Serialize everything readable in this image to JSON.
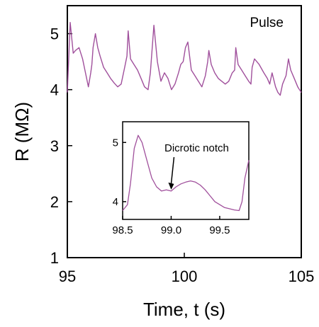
{
  "chart_data": [
    {
      "type": "line",
      "xlabel": "Time, t (s)",
      "ylabel": "R (MΩ)",
      "xlim": [
        95,
        105
      ],
      "ylim": [
        1,
        5.5
      ],
      "xticks": [
        95,
        100,
        105
      ],
      "yticks": [
        1,
        2,
        3,
        4,
        5
      ],
      "legend_placement": "top-right",
      "grid": false,
      "color": "#a0509c",
      "series": [
        {
          "name": "Pulse",
          "x": [
            95.0,
            95.12,
            95.25,
            95.35,
            95.5,
            95.65,
            95.8,
            95.9,
            96.0,
            96.05,
            96.1,
            96.2,
            96.3,
            96.4,
            96.55,
            96.7,
            96.85,
            97.0,
            97.15,
            97.3,
            97.45,
            97.55,
            97.6,
            97.7,
            97.85,
            98.0,
            98.15,
            98.3,
            98.45,
            98.55,
            98.7,
            98.85,
            99.0,
            99.15,
            99.3,
            99.45,
            99.6,
            99.75,
            99.85,
            99.95,
            100.05,
            100.15,
            100.3,
            100.45,
            100.6,
            100.75,
            100.9,
            101.0,
            101.05,
            101.15,
            101.3,
            101.45,
            101.6,
            101.75,
            101.9,
            102.05,
            102.15,
            102.2,
            102.3,
            102.45,
            102.6,
            102.75,
            102.85,
            102.9,
            103.0,
            103.2,
            103.4,
            103.55,
            103.65,
            103.75,
            103.9,
            104.0,
            104.1,
            104.2,
            104.35,
            104.45,
            104.55,
            104.7,
            104.85,
            105.0
          ],
          "y": [
            3.95,
            5.2,
            4.65,
            4.7,
            4.75,
            4.55,
            4.25,
            4.05,
            4.3,
            4.45,
            4.75,
            5.0,
            4.75,
            4.6,
            4.4,
            4.3,
            4.2,
            4.12,
            4.05,
            4.1,
            4.4,
            4.6,
            5.05,
            4.55,
            4.45,
            4.35,
            4.2,
            4.05,
            4.0,
            4.3,
            5.15,
            4.5,
            4.15,
            4.3,
            4.2,
            4.0,
            4.1,
            4.3,
            4.45,
            4.5,
            4.75,
            4.85,
            4.35,
            4.25,
            4.15,
            4.05,
            4.25,
            4.5,
            4.7,
            4.45,
            4.3,
            4.2,
            4.15,
            4.1,
            4.15,
            4.3,
            4.35,
            4.75,
            4.45,
            4.35,
            4.25,
            4.15,
            4.1,
            4.4,
            4.55,
            4.45,
            4.3,
            4.2,
            4.1,
            4.3,
            4.05,
            3.95,
            3.9,
            4.1,
            4.25,
            4.55,
            4.35,
            4.2,
            4.05,
            3.95
          ]
        }
      ]
    },
    {
      "type": "line",
      "xlim": [
        98.5,
        99.8
      ],
      "ylim": [
        3.7,
        5.35
      ],
      "xticks": [
        98.5,
        99.0,
        99.5
      ],
      "xtick_labels": [
        "98.5",
        "99.0",
        "99.5"
      ],
      "yticks": [
        4,
        5
      ],
      "grid": false,
      "color": "#a0509c",
      "annotation": "Dicrotic notch",
      "annotation_x": 99.0,
      "annotation_y": 4.18,
      "series": [
        {
          "x": [
            98.5,
            98.55,
            98.58,
            98.62,
            98.66,
            98.7,
            98.75,
            98.8,
            98.85,
            98.9,
            98.95,
            99.0,
            99.05,
            99.1,
            99.15,
            99.2,
            99.25,
            99.3,
            99.35,
            99.4,
            99.45,
            99.5,
            99.55,
            99.6,
            99.65,
            99.7,
            99.73,
            99.76,
            99.8
          ],
          "y": [
            3.85,
            3.95,
            4.3,
            4.9,
            5.12,
            5.0,
            4.7,
            4.4,
            4.25,
            4.18,
            4.2,
            4.18,
            4.25,
            4.3,
            4.33,
            4.35,
            4.33,
            4.28,
            4.2,
            4.1,
            4.0,
            3.95,
            3.9,
            3.88,
            3.86,
            3.85,
            4.0,
            4.4,
            4.7
          ]
        }
      ]
    }
  ]
}
